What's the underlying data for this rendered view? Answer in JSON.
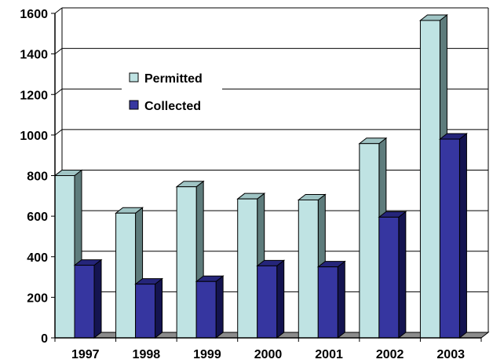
{
  "chart_data": {
    "type": "bar",
    "categories": [
      "1997",
      "1998",
      "1999",
      "2000",
      "2001",
      "2002",
      "2003"
    ],
    "series": [
      {
        "name": "Permitted",
        "values": [
          800,
          615,
          745,
          685,
          680,
          958,
          1565
        ],
        "color": "#bfe3e3",
        "side_color": "#5e7c7c",
        "top_color": "#9fc4c4"
      },
      {
        "name": "Collected",
        "values": [
          358,
          265,
          278,
          355,
          350,
          595,
          980
        ],
        "color": "#3636a0",
        "side_color": "#141450",
        "top_color": "#25257a"
      }
    ],
    "y_ticks": [
      "0",
      "200",
      "400",
      "600",
      "800",
      "1000",
      "1200",
      "1400",
      "1600"
    ],
    "ylim": [
      0,
      1600
    ],
    "grid": true,
    "legend_position": "upper-left",
    "chart_style": "3d-clustered-column"
  }
}
